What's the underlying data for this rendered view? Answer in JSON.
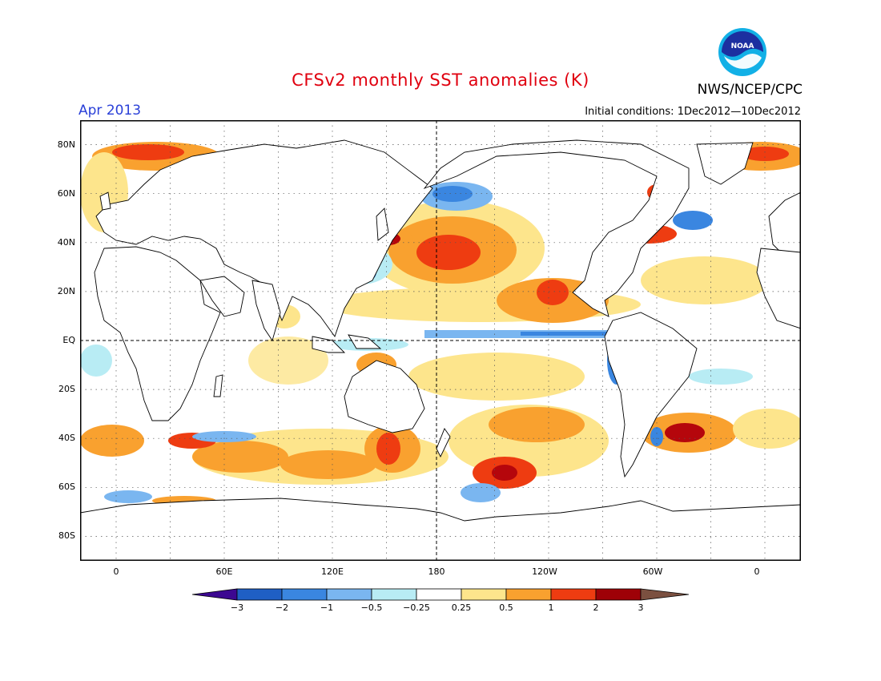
{
  "header": {
    "title": "CFSv2 monthly SST anomalies (K)",
    "month": "Apr 2013",
    "agency": "NWS/NCEP/CPC",
    "initial_conditions": "Initial conditions: 1Dec2012—10Dec2012",
    "logo_text": "NOAA"
  },
  "map": {
    "projection": "equirectangular",
    "lon_range": [
      -20,
      380
    ],
    "lat_range": [
      -90,
      90
    ],
    "grid": "dotted every 30° lon, 20° lat",
    "lat_labels": [
      "80N",
      "60N",
      "40N",
      "20N",
      "EQ",
      "20S",
      "40S",
      "60S",
      "80S"
    ],
    "lon_labels": [
      "0",
      "60E",
      "120E",
      "180",
      "120W",
      "60W",
      "0"
    ],
    "colorbar": {
      "tick_labels": [
        "−3",
        "−2",
        "−1",
        "−0.5",
        "−0.25",
        "0.25",
        "0.5",
        "1",
        "2",
        "3"
      ],
      "colors": [
        "#3c0891",
        "#1f5fc4",
        "#3a86e0",
        "#7ab6f0",
        "#b8ecf4",
        "#ffffff",
        "#fde58c",
        "#f9a12f",
        "#ee3c11",
        "#b5060c",
        "#9e0107",
        "#7b5040"
      ]
    }
  }
}
